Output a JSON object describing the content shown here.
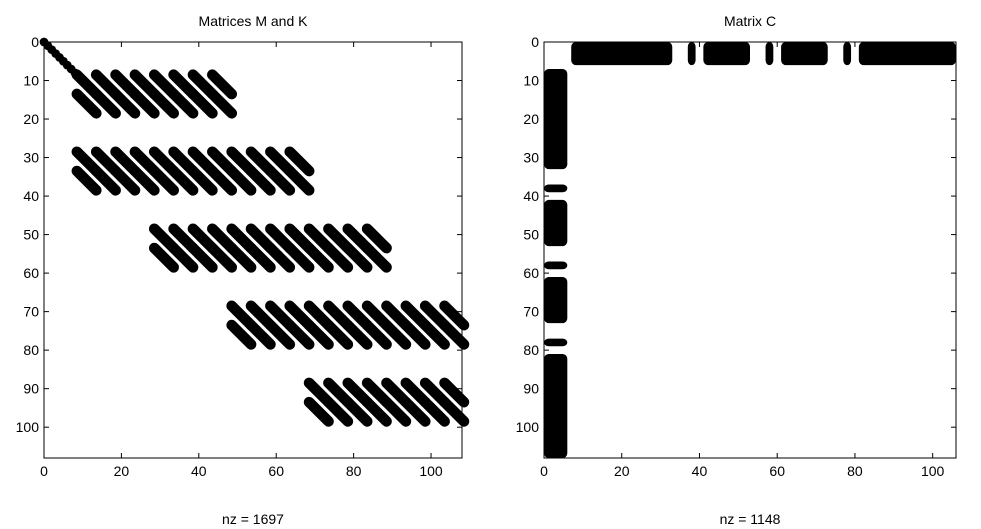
{
  "chart_data": [
    {
      "type": "spy",
      "title": "Matrices M and K",
      "xlabel": "nz = 1697",
      "nz": 1697,
      "xlim": [
        0,
        108
      ],
      "ylim": [
        0,
        108
      ],
      "y_reversed": true,
      "xticks": [
        0,
        20,
        40,
        60,
        80,
        100
      ],
      "yticks": [
        0,
        10,
        20,
        30,
        40,
        50,
        60,
        70,
        80,
        90,
        100
      ],
      "grid": false,
      "diagonal_nonzeros": {
        "from": 0,
        "to": 8
      },
      "nonzero_blocks": [
        {
          "rows": [
            8,
            28
          ],
          "cols": [
            8,
            28
          ]
        },
        {
          "rows": [
            8,
            28
          ],
          "cols": [
            28,
            48
          ]
        },
        {
          "rows": [
            28,
            48
          ],
          "cols": [
            8,
            28
          ]
        },
        {
          "rows": [
            28,
            48
          ],
          "cols": [
            28,
            48
          ]
        },
        {
          "rows": [
            28,
            48
          ],
          "cols": [
            48,
            68
          ]
        },
        {
          "rows": [
            48,
            68
          ],
          "cols": [
            28,
            48
          ]
        },
        {
          "rows": [
            48,
            68
          ],
          "cols": [
            48,
            68
          ]
        },
        {
          "rows": [
            48,
            68
          ],
          "cols": [
            68,
            88
          ]
        },
        {
          "rows": [
            68,
            88
          ],
          "cols": [
            48,
            68
          ]
        },
        {
          "rows": [
            68,
            88
          ],
          "cols": [
            68,
            88
          ]
        },
        {
          "rows": [
            68,
            88
          ],
          "cols": [
            88,
            108
          ]
        },
        {
          "rows": [
            88,
            108
          ],
          "cols": [
            68,
            88
          ]
        },
        {
          "rows": [
            88,
            108
          ],
          "cols": [
            88,
            108
          ]
        }
      ],
      "block_stripe_offsets": [
        0,
        5
      ]
    },
    {
      "type": "spy",
      "title": "Matrix C",
      "xlabel": "nz = 1148",
      "nz": 1148,
      "xlim": [
        0,
        106
      ],
      "ylim": [
        0,
        108
      ],
      "y_reversed": true,
      "xticks": [
        0,
        20,
        40,
        60,
        80,
        100
      ],
      "yticks": [
        0,
        10,
        20,
        30,
        40,
        50,
        60,
        70,
        80,
        90,
        100
      ],
      "grid": false,
      "row_band": {
        "rows": [
          0,
          6
        ],
        "col_segments": [
          [
            7,
            33
          ],
          [
            37,
            39
          ],
          [
            41,
            53
          ],
          [
            57,
            59
          ],
          [
            61,
            73
          ],
          [
            77,
            79
          ],
          [
            81,
            106
          ]
        ]
      },
      "col_band": {
        "cols": [
          0,
          6
        ],
        "row_segments": [
          [
            7,
            33
          ],
          [
            37,
            39
          ],
          [
            41,
            53
          ],
          [
            57,
            59
          ],
          [
            61,
            73
          ],
          [
            77,
            79
          ],
          [
            81,
            108
          ]
        ]
      }
    }
  ]
}
